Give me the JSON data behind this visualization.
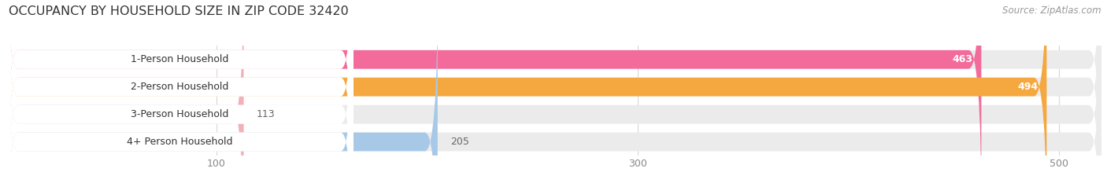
{
  "title": "OCCUPANCY BY HOUSEHOLD SIZE IN ZIP CODE 32420",
  "source": "Source: ZipAtlas.com",
  "categories": [
    "1-Person Household",
    "2-Person Household",
    "3-Person Household",
    "4+ Person Household"
  ],
  "values": [
    463,
    494,
    113,
    205
  ],
  "bar_colors": [
    "#F26B9B",
    "#F5A840",
    "#F2B0B8",
    "#A8C8E8"
  ],
  "bar_bg_colors": [
    "#EBEBEB",
    "#EBEBEB",
    "#EBEBEB",
    "#EBEBEB"
  ],
  "label_colors": [
    "white",
    "white",
    "#666666",
    "#666666"
  ],
  "xlim": [
    0,
    520
  ],
  "xticks": [
    100,
    300,
    500
  ],
  "title_fontsize": 11.5,
  "source_fontsize": 8.5,
  "bar_label_fontsize": 9,
  "category_fontsize": 9,
  "bar_height": 0.68,
  "figsize": [
    14.06,
    2.33
  ],
  "dpi": 100
}
